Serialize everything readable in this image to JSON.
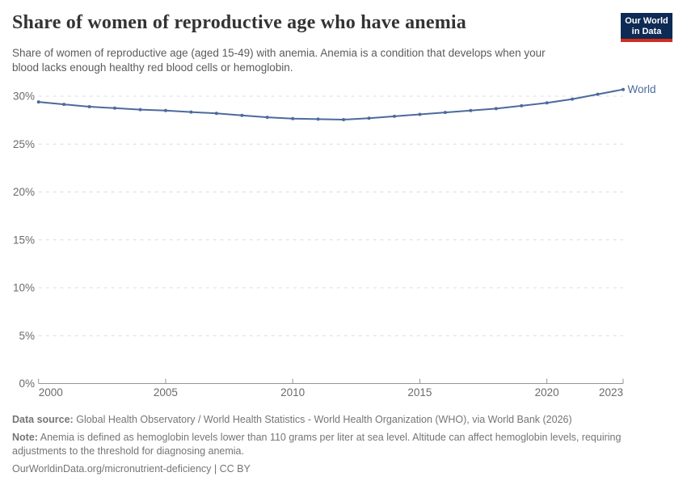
{
  "header": {
    "title": "Share of women of reproductive age who have anemia",
    "subtitle_line1": "Share of women of reproductive age (aged 15-49) with anemia. Anemia is a condition that develops when your",
    "subtitle_line2": "blood lacks enough healthy red blood cells or hemoglobin.",
    "logo": {
      "line1": "Our World",
      "line2": "in Data"
    }
  },
  "chart_data": {
    "type": "line",
    "title": "Share of women of reproductive age who have anemia",
    "xlabel": "",
    "ylabel": "",
    "xlim": [
      2000,
      2023
    ],
    "ylim": [
      0,
      31
    ],
    "grid": "horizontal-dashed",
    "legend_position": "end-of-line",
    "x": [
      2000,
      2001,
      2002,
      2003,
      2004,
      2005,
      2006,
      2007,
      2008,
      2009,
      2010,
      2011,
      2012,
      2013,
      2014,
      2015,
      2016,
      2017,
      2018,
      2019,
      2020,
      2021,
      2022,
      2023
    ],
    "series": [
      {
        "name": "World",
        "color": "#4c6a9c",
        "values": [
          29.4,
          29.15,
          28.9,
          28.75,
          28.6,
          28.5,
          28.35,
          28.2,
          28.0,
          27.8,
          27.65,
          27.6,
          27.55,
          27.7,
          27.9,
          28.1,
          28.3,
          28.5,
          28.7,
          29.0,
          29.3,
          29.7,
          30.2,
          30.7
        ]
      }
    ],
    "y_tick_values": [
      0,
      5,
      10,
      15,
      20,
      25,
      30
    ],
    "y_tick_labels": [
      "0%",
      "5%",
      "10%",
      "15%",
      "20%",
      "25%",
      "30%"
    ],
    "x_tick_values": [
      2000,
      2005,
      2010,
      2015,
      2020,
      2023
    ],
    "x_tick_labels": [
      "2000",
      "2005",
      "2010",
      "2015",
      "2020",
      "2023"
    ]
  },
  "colors": {
    "line": "#4c6a9c",
    "logo_navy": "#0d2b54",
    "logo_red": "#d22e1e",
    "grid": "#dcdcdc",
    "axis": "#959595",
    "tick_label": "#6b6b6b",
    "title": "#333333",
    "subtitle": "#5b5b5b",
    "footer": "#757575"
  },
  "footer": {
    "datasource_label": "Data source:",
    "datasource_text": "Global Health Observatory / World Health Statistics - World Health Organization (WHO), via World Bank (2026)",
    "note_label": "Note:",
    "note_line1": "Anemia is defined as hemoglobin levels lower than 110 grams per liter at sea level. Altitude can affect hemoglobin levels, requiring",
    "note_line2": "adjustments to the threshold for diagnosing anemia.",
    "url_line": "OurWorldinData.org/micronutrient-deficiency | CC BY"
  }
}
